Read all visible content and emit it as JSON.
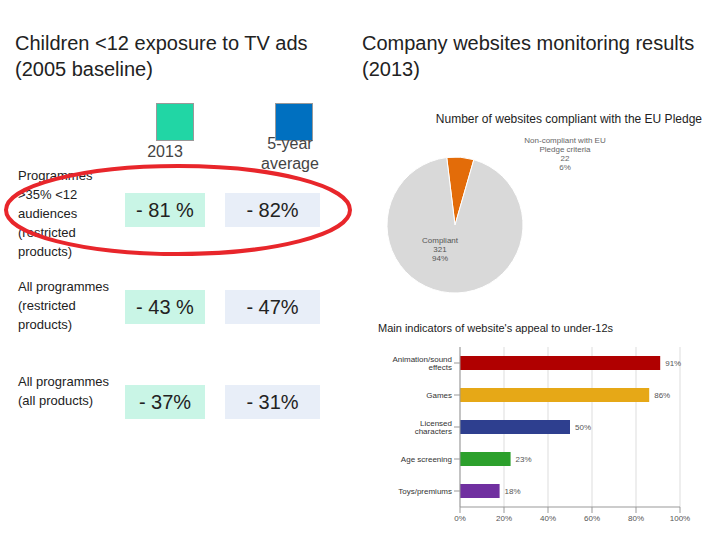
{
  "left": {
    "title": "Children <12 exposure to TV ads (2005 baseline)",
    "columns": [
      {
        "label": "2013",
        "color": "#21d6a5"
      },
      {
        "label": "5-year average",
        "color": "#0070c0"
      }
    ],
    "rows": [
      {
        "label": "Programmes >35% <12 audiences (restricted products)",
        "values": [
          "- 81 %",
          "- 82%"
        ]
      },
      {
        "label": "All programmes (restricted products)",
        "values": [
          "- 43 %",
          "- 47%"
        ]
      },
      {
        "label": "All programmes (all products)",
        "values": [
          "- 37%",
          "- 31%"
        ]
      }
    ]
  },
  "right": {
    "title": "Company websites monitoring results (2013)"
  },
  "chart_data": [
    {
      "type": "pie",
      "title": "Number of websites compliant with the EU Pledge",
      "categories": [
        "Non-compliant with EU Pledge criteria",
        "Compliant"
      ],
      "values": [
        22,
        321
      ],
      "percent_labels": [
        "6%",
        "94%"
      ],
      "colors": [
        "#e36c09",
        "#d9d9d9"
      ],
      "data_labels": true
    },
    {
      "type": "bar",
      "title": "Main indicators of website's appeal to under-12s",
      "orientation": "horizontal",
      "categories": [
        "Animation/sound effects",
        "Games",
        "Licensed characters",
        "Age screening",
        "Toys/premiums"
      ],
      "values": [
        91,
        86,
        50,
        23,
        18
      ],
      "value_labels": [
        "91%",
        "86%",
        "50%",
        "23%",
        "18%"
      ],
      "colors": [
        "#b00000",
        "#e6a817",
        "#2e3f8f",
        "#2ca02c",
        "#7030a0"
      ],
      "xlim": [
        0,
        100
      ],
      "xticks": [
        {
          "value": 0,
          "label": "0%"
        },
        {
          "value": 20,
          "label": "20%"
        },
        {
          "value": 40,
          "label": "40%"
        },
        {
          "value": 60,
          "label": "60%"
        },
        {
          "value": 80,
          "label": "80%"
        },
        {
          "value": 100,
          "label": "100%"
        }
      ],
      "grid": true,
      "data_labels": true
    }
  ]
}
